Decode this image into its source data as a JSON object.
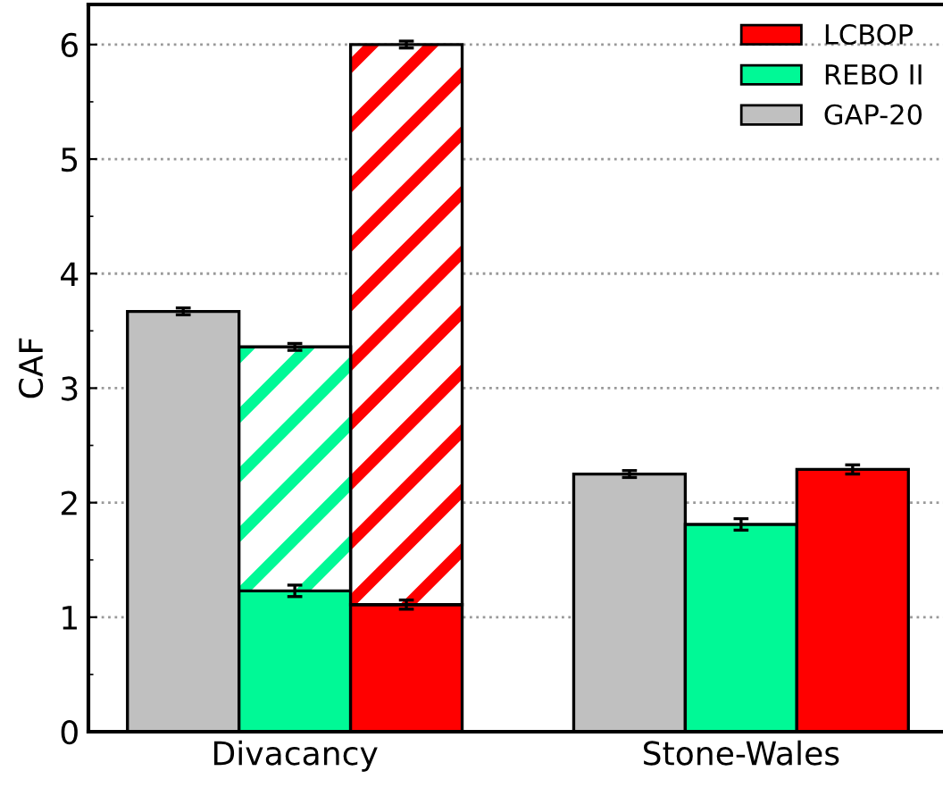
{
  "chart_data": {
    "type": "bar",
    "ylabel": "CAF",
    "categories": [
      null,
      "Divacancy",
      null,
      null,
      null,
      "Stone-Wales",
      null
    ],
    "stacked": true,
    "series": [
      {
        "name": "GAP-20",
        "color": "#c0c0c0",
        "values": [
          3.67,
          null,
          null,
          null,
          2.25,
          null,
          null
        ],
        "errors": [
          0.03,
          null,
          null,
          null,
          0.03,
          null,
          null
        ]
      },
      {
        "name": "REBO II",
        "color": "#00f996",
        "values": [
          null,
          1.23,
          null,
          null,
          null,
          1.81,
          null
        ],
        "errors": [
          null,
          0.05,
          null,
          null,
          null,
          0.05,
          null
        ]
      },
      {
        "name": "LCBOP",
        "color": "#ff0000",
        "values": [
          null,
          null,
          1.11,
          null,
          null,
          null,
          2.29
        ],
        "errors": [
          null,
          null,
          0.04,
          null,
          null,
          null,
          0.04
        ]
      },
      {
        "color": "#00f996",
        "values": [
          null,
          2.13,
          null,
          null,
          null,
          null,
          null
        ],
        "errors": [
          null,
          0.03,
          null,
          null,
          null,
          null,
          null
        ]
      },
      {
        "color": "#ff0000",
        "values": [
          null,
          null,
          4.89,
          null,
          null,
          null,
          null
        ],
        "errors": [
          null,
          null,
          0.03,
          null,
          null,
          null,
          null
        ]
      }
    ],
    "ylim": [
      0,
      6.35
    ],
    "yticks": [
      0,
      1,
      2,
      3,
      4,
      5,
      6
    ],
    "grid": "y",
    "legend": "top right"
  }
}
